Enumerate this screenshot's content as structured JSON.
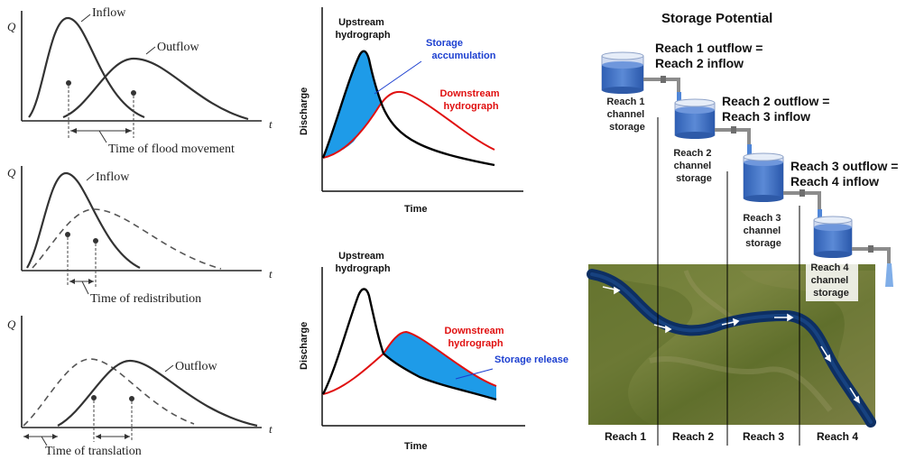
{
  "left_panels": {
    "axis_q": "Q",
    "axis_t": "t",
    "top": {
      "inflow": "Inflow",
      "outflow": "Outflow",
      "time_label": "Time of flood movement"
    },
    "middle": {
      "inflow": "Inflow",
      "time_label": "Time of redistribution"
    },
    "bottom": {
      "outflow": "Outflow",
      "time_label": "Time of translation"
    }
  },
  "middle_panels": {
    "top": {
      "upstream_line1": "Upstream",
      "upstream_line2": "hydrograph",
      "storage_line1": "Storage",
      "storage_line2": "accumulation",
      "downstream_line1": "Downstream",
      "downstream_line2": "hydrograph",
      "ylabel": "Discharge",
      "xlabel": "Time"
    },
    "bottom": {
      "upstream_line1": "Upstream",
      "upstream_line2": "hydrograph",
      "downstream_line1": "Downstream",
      "downstream_line2": "hydrograph",
      "storage": "Storage release",
      "ylabel": "Discharge",
      "xlabel": "Time"
    }
  },
  "right_panel": {
    "title": "Storage Potential",
    "flow_labels": [
      {
        "line1": "Reach 1 outflow =",
        "line2": "Reach 2 inflow"
      },
      {
        "line1": "Reach 2 outflow =",
        "line2": "Reach 3 inflow"
      },
      {
        "line1": "Reach 3 outflow =",
        "line2": "Reach 4 inflow"
      }
    ],
    "tank_labels": [
      {
        "line1": "Reach 1",
        "line2": "channel",
        "line3": "storage"
      },
      {
        "line1": "Reach 2",
        "line2": "channel",
        "line3": "storage"
      },
      {
        "line1": "Reach 3",
        "line2": "channel",
        "line3": "storage"
      },
      {
        "line1": "Reach 4",
        "line2": "channel",
        "line3": "storage"
      }
    ],
    "reach_labels": [
      "Reach 1",
      "Reach 2",
      "Reach 3",
      "Reach 4"
    ]
  },
  "colors": {
    "storage_fill": "#1e9be8",
    "upstream_line": "#000000",
    "downstream_line": "#e01010",
    "storage_text": "#1c3fd0",
    "downstream_text": "#e01010",
    "tank_water": "#3f6fc4",
    "river": "#0d2f63",
    "terrain": "#6b7a32"
  }
}
